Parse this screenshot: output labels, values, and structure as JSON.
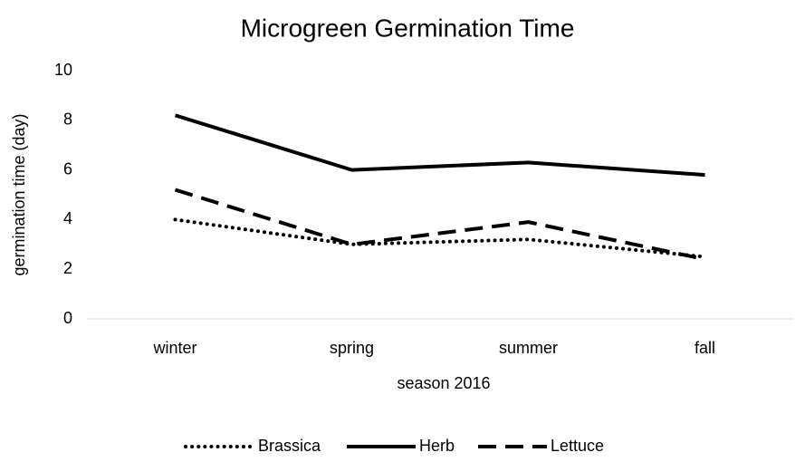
{
  "chart_data": {
    "type": "line",
    "title": "Microgreen Germination Time",
    "x_label": "season 2016",
    "y_label": "germination time (day)",
    "categories": [
      "winter",
      "spring",
      "summer",
      "fall"
    ],
    "series": [
      {
        "name": "Brassica",
        "color": "#000000",
        "dash": "dot",
        "values": [
          4.0,
          3.0,
          3.2,
          2.5
        ]
      },
      {
        "name": "Herb",
        "color": "#000000",
        "dash": "solid",
        "values": [
          8.2,
          6.0,
          6.3,
          5.8
        ]
      },
      {
        "name": "Lettuce",
        "color": "#000000",
        "dash": "dash",
        "values": [
          5.2,
          3.0,
          3.9,
          2.4
        ]
      }
    ],
    "ylim": [
      0,
      10
    ],
    "yticks": [
      0,
      2,
      4,
      6,
      8,
      10
    ],
    "grid": false,
    "legend": "bottom"
  }
}
